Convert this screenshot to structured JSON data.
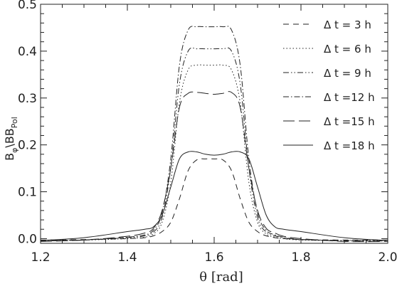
{
  "chart_data": {
    "type": "line",
    "xlabel": "θ [rad]",
    "ylabel_main": "B",
    "ylabel_sub1": "φ",
    "ylabel_sep": "\\B",
    "ylabel_sub2": "Pol",
    "xlim": [
      1.2,
      2.0
    ],
    "ylim": [
      -0.01,
      0.5
    ],
    "xticks": [
      1.2,
      1.4,
      1.6,
      1.8,
      2.0
    ],
    "xtick_labels": [
      "1.2",
      "1.4",
      "1.6",
      "1.8",
      "2.0"
    ],
    "yticks": [
      0.0,
      0.1,
      0.2,
      0.3,
      0.4,
      0.5
    ],
    "ytick_labels": [
      "0.0",
      "0.1",
      "0.2",
      "0.3",
      "0.4",
      "0.5"
    ],
    "grid": false,
    "legend_position": "top-right",
    "x": [
      1.2,
      1.3,
      1.4,
      1.44,
      1.46,
      1.48,
      1.5,
      1.52,
      1.54,
      1.56,
      1.58,
      1.6,
      1.62,
      1.64,
      1.66,
      1.68,
      1.7,
      1.72,
      1.74,
      1.76,
      1.8,
      1.9,
      2.0
    ],
    "series": [
      {
        "name": "Δ t = 3 h",
        "dash": "dashed",
        "values": [
          -0.003,
          -0.002,
          0.0,
          0.002,
          0.006,
          0.015,
          0.035,
          0.085,
          0.145,
          0.168,
          0.17,
          0.17,
          0.168,
          0.145,
          0.085,
          0.035,
          0.015,
          0.006,
          0.002,
          0.0,
          -0.002,
          -0.003,
          -0.003
        ]
      },
      {
        "name": "Δ t = 6 h",
        "dash": "dotted",
        "values": [
          -0.004,
          -0.003,
          0.0,
          0.003,
          0.01,
          0.035,
          0.12,
          0.29,
          0.36,
          0.37,
          0.37,
          0.37,
          0.37,
          0.36,
          0.29,
          0.12,
          0.035,
          0.01,
          0.003,
          0.0,
          -0.003,
          -0.004,
          -0.004
        ]
      },
      {
        "name": "Δ t = 9 h",
        "dash": "dash-dot-dot",
        "values": [
          -0.004,
          -0.003,
          0.002,
          0.006,
          0.014,
          0.045,
          0.15,
          0.33,
          0.4,
          0.405,
          0.405,
          0.405,
          0.405,
          0.4,
          0.33,
          0.15,
          0.045,
          0.014,
          0.006,
          0.002,
          -0.002,
          -0.004,
          -0.004
        ]
      },
      {
        "name": "Δ t =12 h",
        "dash": "dash-dot",
        "values": [
          -0.005,
          -0.003,
          0.003,
          0.008,
          0.018,
          0.055,
          0.17,
          0.37,
          0.445,
          0.452,
          0.452,
          0.452,
          0.452,
          0.445,
          0.37,
          0.17,
          0.055,
          0.018,
          0.008,
          0.003,
          -0.002,
          -0.005,
          -0.005
        ]
      },
      {
        "name": "Δ t =15 h",
        "dash": "long-dash",
        "values": [
          -0.006,
          -0.003,
          0.005,
          0.012,
          0.022,
          0.06,
          0.15,
          0.28,
          0.31,
          0.312,
          0.31,
          0.308,
          0.31,
          0.312,
          0.28,
          0.15,
          0.06,
          0.022,
          0.012,
          0.005,
          0.0,
          -0.006,
          -0.006
        ]
      },
      {
        "name": "Δ t =18 h",
        "dash": "solid",
        "values": [
          -0.004,
          0.002,
          0.015,
          0.02,
          0.025,
          0.05,
          0.11,
          0.17,
          0.185,
          0.185,
          0.18,
          0.178,
          0.18,
          0.185,
          0.185,
          0.17,
          0.11,
          0.05,
          0.025,
          0.02,
          0.015,
          0.002,
          -0.004
        ]
      }
    ]
  }
}
